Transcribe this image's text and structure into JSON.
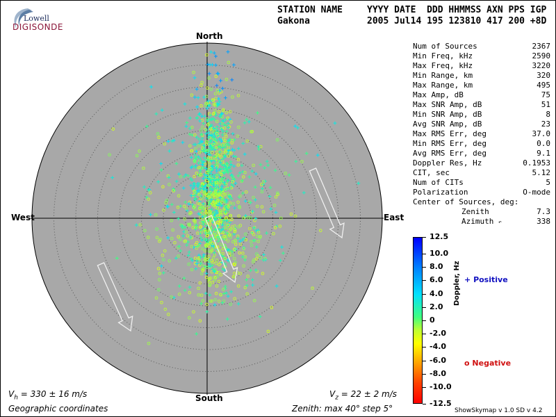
{
  "branding": {
    "logo_top": "Lowell",
    "logo_bottom": "DIGISONDE"
  },
  "header": {
    "station_label": "STATION NAME",
    "date_label": "YYYY DATE  DDD HHMMSS AXN PPS IGP",
    "station": "Gakona",
    "date_values": "2005 Jul14 195 123810 417 200 +8D"
  },
  "stats": [
    {
      "label": "Num of Sources",
      "value": "2367"
    },
    {
      "label": "Min Freq, kHz",
      "value": "2590"
    },
    {
      "label": "Max Freq, kHz",
      "value": "3220"
    },
    {
      "label": "Min Range, km",
      "value": "320"
    },
    {
      "label": "Max Range, km",
      "value": "495"
    },
    {
      "label": "Max Amp, dB",
      "value": "75"
    },
    {
      "label": "Max SNR Amp, dB",
      "value": "51"
    },
    {
      "label": "Min SNR Amp, dB",
      "value": "8"
    },
    {
      "label": "Avg SNR Amp, dB",
      "value": "23"
    },
    {
      "label": "Max RMS Err, deg",
      "value": "37.0"
    },
    {
      "label": "Min RMS Err, deg",
      "value": "0.0"
    },
    {
      "label": "Avg RMS Err, deg",
      "value": "9.1"
    },
    {
      "label": "Doppler Res, Hz",
      "value": "0.1953"
    },
    {
      "label": "CIT, sec",
      "value": "5.12"
    },
    {
      "label": "Num of CITs",
      "value": "5"
    },
    {
      "label": "Polarization",
      "value": "O-mode"
    }
  ],
  "center": {
    "title": "Center of Sources, deg:",
    "zenith_label": "Zenith",
    "zenith_value": "7.3",
    "azimuth_label": "Azimuth",
    "azimuth_value": "338"
  },
  "colorbar": {
    "ticks": [
      "12.5",
      "10.0",
      "8.0",
      "6.0",
      "4.0",
      "2.0",
      "0",
      "-2.0",
      "-4.0",
      "-6.0",
      "-8.0",
      "-10.0",
      "-12.5"
    ],
    "label": "Doppler, Hz",
    "min": -12.5,
    "max": 12.5
  },
  "legend": {
    "positive_marker": "+",
    "positive_label": "Positive",
    "positive_color": "#1010c0",
    "negative_marker": "o",
    "negative_label": "Negative",
    "negative_color": "#d01010"
  },
  "directions": {
    "north": "North",
    "south": "South",
    "east": "East",
    "west": "West"
  },
  "footer": {
    "vh": "V",
    "vh_sub": "h",
    "vh_value": " = 330 ± 16 m/s",
    "vz": "V",
    "vz_sub": "z",
    "vz_value": " = 22 ± 2 m/s",
    "coords": "Geographic coordinates",
    "zenith_info": "Zenith: max 40°  step 5°",
    "version": "ShowSkymap v 1.0   SD v 4.2"
  },
  "chart_data": {
    "type": "scatter",
    "projection": "polar skymap",
    "zenith_max_deg": 40,
    "zenith_step_deg": 5,
    "num_sources": 2367,
    "center_zenith_deg": 7.3,
    "center_azimuth_deg": 338,
    "background": "#a8a8a8",
    "velocity_arrows": [
      {
        "label": "Vh",
        "speed_ms": 330,
        "err_ms": 16
      },
      {
        "label": "Vz",
        "speed_ms": 22,
        "err_ms": 2
      }
    ]
  }
}
